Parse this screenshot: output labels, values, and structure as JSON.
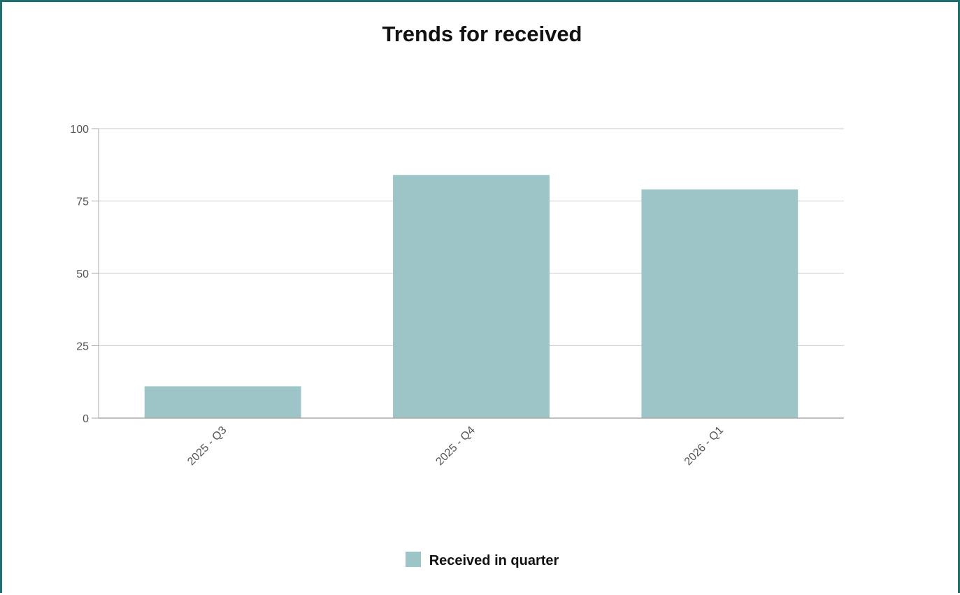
{
  "chart_data": {
    "type": "bar",
    "title": "Trends for received",
    "xlabel": "",
    "ylabel": "",
    "categories": [
      "2025 - Q3",
      "2025 - Q4",
      "2026 - Q1"
    ],
    "series": [
      {
        "name": "Received in quarter",
        "values": [
          11,
          84,
          79
        ],
        "color": "#9dc4c7"
      }
    ],
    "ylim": [
      0,
      100
    ],
    "yticks": [
      0,
      25,
      50,
      75,
      100
    ],
    "grid": true,
    "legend_position": "bottom-center"
  },
  "colors": {
    "frame_border": "#1f6f6f",
    "gridline": "#cccccc",
    "axis": "#aaaaaa",
    "tick_label": "#555555"
  }
}
